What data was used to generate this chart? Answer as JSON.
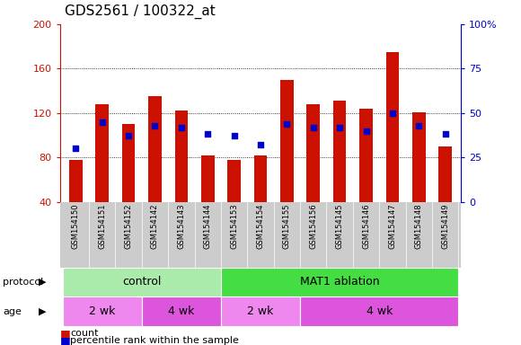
{
  "title": "GDS2561 / 100322_at",
  "samples": [
    "GSM154150",
    "GSM154151",
    "GSM154152",
    "GSM154142",
    "GSM154143",
    "GSM154144",
    "GSM154153",
    "GSM154154",
    "GSM154155",
    "GSM154156",
    "GSM154145",
    "GSM154146",
    "GSM154147",
    "GSM154148",
    "GSM154149"
  ],
  "count_values": [
    78,
    128,
    110,
    135,
    122,
    82,
    78,
    82,
    150,
    128,
    131,
    124,
    175,
    121,
    90
  ],
  "percentile_values_pct": [
    30,
    45,
    37,
    43,
    42,
    38,
    37,
    32,
    44,
    42,
    42,
    40,
    50,
    43,
    38
  ],
  "ylim_left": [
    40,
    200
  ],
  "ylim_right": [
    0,
    100
  ],
  "yticks_left": [
    40,
    80,
    120,
    160,
    200
  ],
  "yticks_right": [
    0,
    25,
    50,
    75,
    100
  ],
  "bar_color": "#cc1100",
  "dot_color": "#0000cc",
  "protocol_groups": [
    {
      "label": "control",
      "xmin": -0.5,
      "xmax": 5.5,
      "color": "#aaeaaa"
    },
    {
      "label": "MAT1 ablation",
      "xmin": 5.5,
      "xmax": 14.5,
      "color": "#44dd44"
    }
  ],
  "age_groups": [
    {
      "label": "2 wk",
      "xmin": -0.5,
      "xmax": 2.5,
      "color": "#ee88ee"
    },
    {
      "label": "4 wk",
      "xmin": 2.5,
      "xmax": 5.5,
      "color": "#dd55dd"
    },
    {
      "label": "2 wk",
      "xmin": 5.5,
      "xmax": 8.5,
      "color": "#ee88ee"
    },
    {
      "label": "4 wk",
      "xmin": 8.5,
      "xmax": 14.5,
      "color": "#dd55dd"
    }
  ],
  "protocol_label": "protocol",
  "age_label": "age",
  "legend_count_label": "count",
  "legend_pct_label": "percentile rank within the sample",
  "left_tick_color": "#cc1100",
  "right_tick_color": "#0000cc",
  "gray_bg": "#cccccc",
  "title_fontsize": 11,
  "tick_fontsize": 8,
  "sample_fontsize": 6.0,
  "band_fontsize": 9,
  "legend_fontsize": 8
}
